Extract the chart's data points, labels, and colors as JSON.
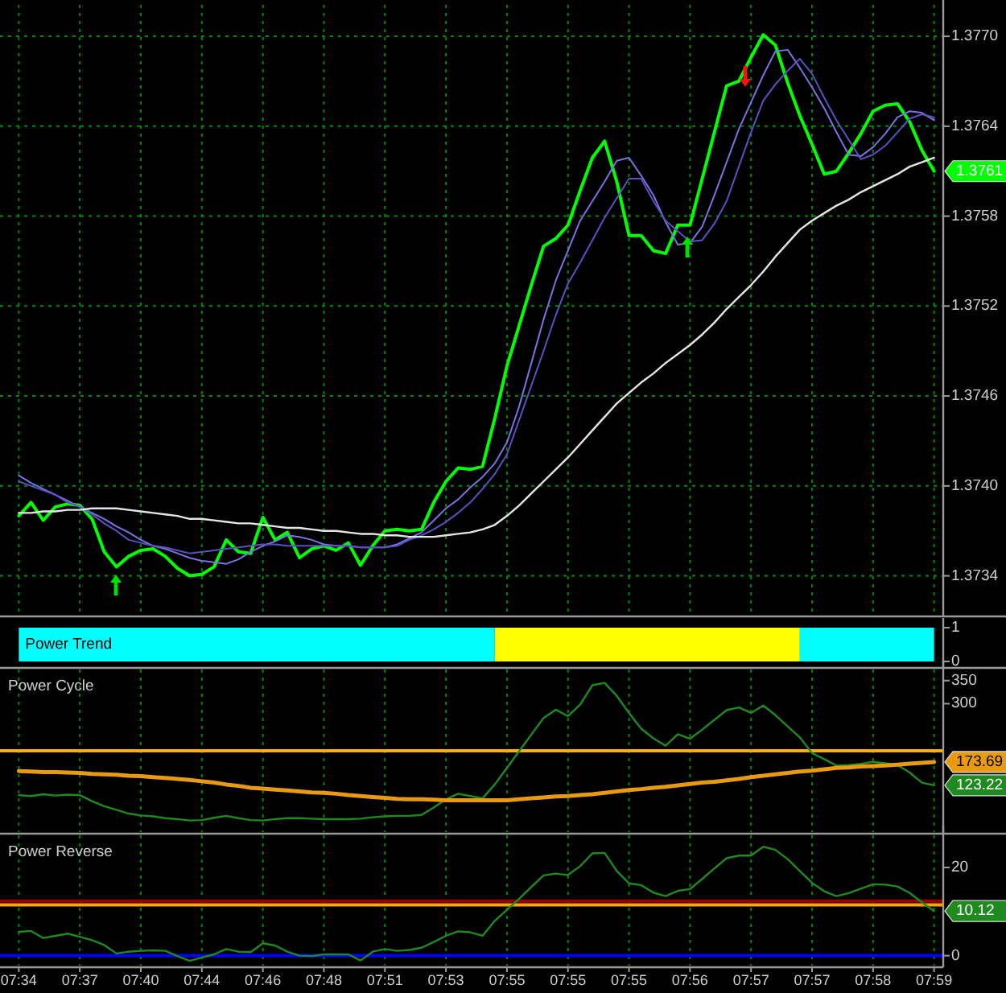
{
  "chart_data": [
    {
      "type": "line",
      "categories": [
        null,
        null,
        null,
        null,
        null,
        null,
        null,
        null,
        null,
        null,
        null,
        null,
        null,
        null,
        null,
        null,
        null,
        null,
        null,
        null,
        null,
        null,
        null,
        null,
        null,
        null,
        null,
        null,
        null,
        null,
        null,
        null,
        null,
        null,
        null,
        null,
        null,
        null,
        null,
        null,
        null,
        null,
        null,
        null,
        null,
        null,
        null,
        null,
        null,
        null,
        null,
        null,
        null,
        null,
        null,
        null,
        null,
        null,
        null,
        null,
        null,
        null,
        null,
        null,
        null,
        null,
        null,
        null,
        null,
        null,
        null,
        null,
        null,
        null,
        null,
        null
      ],
      "ylim": [
        1.37314,
        1.37721
      ],
      "yticks": [
        1.3734,
        {
          "value": 1.374,
          "label": "1.3740"
        },
        1.3746,
        1.3752,
        1.3758,
        1.3764,
        {
          "value": 1.377,
          "label": "1.3770"
        }
      ],
      "grid": true,
      "tick_labels": "y",
      "series": [
        {
          "color": "#00ff00",
          "values": [
            1.3738,
            1.37389,
            1.37377,
            1.37386,
            1.37388,
            1.37387,
            1.37378,
            1.37356,
            1.37346,
            1.37353,
            1.37357,
            1.37358,
            1.37353,
            1.37345,
            1.3734,
            1.37341,
            1.37346,
            1.37364,
            1.37356,
            1.37355,
            1.37379,
            1.37364,
            1.37369,
            1.37352,
            1.37358,
            1.3736,
            1.37357,
            1.37362,
            1.37347,
            1.3736,
            1.3737,
            1.37371,
            1.3737,
            1.37371,
            1.37389,
            1.37403,
            1.37412,
            1.37411,
            1.37413,
            1.37445,
            1.3748,
            1.37507,
            1.37534,
            1.3756,
            1.37565,
            1.37574,
            1.37597,
            1.37619,
            1.3763,
            1.37603,
            1.37567,
            1.37567,
            1.37557,
            1.37555,
            1.37574,
            1.37574,
            1.37605,
            1.37636,
            1.37667,
            1.3767,
            1.37686,
            1.37701,
            1.37694,
            1.37669,
            1.37647,
            1.37628,
            1.37608,
            1.3761,
            1.37622,
            1.37635,
            1.3765,
            1.37654,
            1.37655,
            1.37643,
            1.37624,
            1.3761
          ],
          "value_labels": [
            null,
            null,
            null,
            null,
            null,
            null,
            null,
            null,
            null,
            null,
            null,
            null,
            null,
            null,
            null,
            null,
            null,
            null,
            null,
            null,
            null,
            null,
            null,
            null,
            null,
            null,
            null,
            null,
            null,
            null,
            null,
            null,
            null,
            null,
            null,
            null,
            null,
            null,
            null,
            null,
            null,
            null,
            null,
            null,
            null,
            null,
            null,
            null,
            null,
            null,
            null,
            null,
            null,
            null,
            null,
            null,
            null,
            null,
            null,
            null,
            null,
            null,
            null,
            null,
            null,
            null,
            null,
            null,
            null,
            null,
            null,
            null,
            null,
            null,
            null,
            "1.3761"
          ]
        },
        {
          "color": "#7b72e0",
          "values": [
            1.37407,
            1.37402,
            1.37398,
            1.37394,
            1.3739,
            1.37386,
            1.37382,
            1.37378,
            1.37373,
            1.37369,
            1.37364,
            1.3736,
            1.37358,
            1.37355,
            1.37352,
            1.3735,
            1.37349,
            1.37348,
            1.37351,
            1.37356,
            1.3736,
            1.37363,
            1.37367,
            1.37366,
            1.37364,
            1.37361,
            1.3736,
            1.3736,
            1.37359,
            1.37359,
            1.37359,
            1.37361,
            1.37365,
            1.37369,
            1.37377,
            1.37385,
            1.37391,
            1.37399,
            1.37406,
            1.37415,
            1.37429,
            1.37453,
            1.37482,
            1.37511,
            1.37537,
            1.37557,
            1.37577,
            1.3759,
            1.37603,
            1.37617,
            1.37619,
            1.37607,
            1.37594,
            1.37576,
            1.37561,
            1.37562,
            1.37573,
            1.37594,
            1.37616,
            1.37638,
            1.37656,
            1.37674,
            1.3769,
            1.37691,
            1.37679,
            1.37666,
            1.37652,
            1.37636,
            1.37621,
            1.3762,
            1.37626,
            1.37635,
            1.37646,
            1.3765,
            1.37649,
            1.37644
          ]
        },
        {
          "color": "#5a52c0",
          "values": [
            1.37403,
            1.374,
            1.37397,
            1.37394,
            1.37389,
            1.37386,
            1.37381,
            1.37375,
            1.3737,
            1.37364,
            1.37362,
            1.3736,
            1.37359,
            1.37357,
            1.37355,
            1.37356,
            1.37357,
            1.37358,
            1.37359,
            1.3736,
            1.37361,
            1.37361,
            1.3736,
            1.3736,
            1.3736,
            1.3736,
            1.3736,
            1.3736,
            1.37359,
            1.37359,
            1.37359,
            1.3736,
            1.37364,
            1.37367,
            1.37371,
            1.37376,
            1.37382,
            1.37389,
            1.37398,
            1.37408,
            1.37421,
            1.37444,
            1.37467,
            1.3749,
            1.37514,
            1.37535,
            1.37549,
            1.37564,
            1.37579,
            1.37592,
            1.37605,
            1.37605,
            1.3759,
            1.37577,
            1.3757,
            1.37563,
            1.37564,
            1.37575,
            1.3759,
            1.37613,
            1.37636,
            1.37657,
            1.37668,
            1.37677,
            1.37685,
            1.37675,
            1.37659,
            1.37644,
            1.37631,
            1.37618,
            1.37621,
            1.37627,
            1.37636,
            1.37645,
            1.37648,
            1.37646
          ]
        },
        {
          "color": "#e6e6e6",
          "values": [
            1.37382,
            1.37382,
            1.37383,
            1.37383,
            1.37384,
            1.37384,
            1.37385,
            1.37385,
            1.37385,
            1.37384,
            1.37383,
            1.37382,
            1.37381,
            1.3738,
            1.37378,
            1.37378,
            1.37377,
            1.37376,
            1.37375,
            1.37375,
            1.37374,
            1.37373,
            1.37372,
            1.37372,
            1.37371,
            1.3737,
            1.3737,
            1.37369,
            1.37368,
            1.37368,
            1.37367,
            1.37367,
            1.37366,
            1.37366,
            1.37366,
            1.37367,
            1.37368,
            1.37369,
            1.37371,
            1.37374,
            1.3738,
            1.37387,
            1.37395,
            1.37403,
            1.37411,
            1.37419,
            1.37428,
            1.37437,
            1.37446,
            1.37455,
            1.37462,
            1.37469,
            1.37475,
            1.37482,
            1.37488,
            1.37494,
            1.37501,
            1.37509,
            1.37518,
            1.37526,
            1.37534,
            1.37543,
            1.37553,
            1.37562,
            1.37571,
            1.37577,
            1.37582,
            1.37587,
            1.37591,
            1.37596,
            1.376,
            1.37604,
            1.37608,
            1.37613,
            1.37616,
            1.37619
          ]
        }
      ]
    },
    {
      "type": "area",
      "title": "Power Trend",
      "categories": [
        null,
        null,
        null,
        null,
        null,
        null,
        null,
        null,
        null,
        null,
        null,
        null,
        null,
        null,
        null,
        null,
        null,
        null,
        null,
        null,
        null,
        null,
        null,
        null,
        null,
        null,
        null,
        null,
        null,
        null,
        null,
        null,
        null,
        null,
        null,
        null,
        null,
        null,
        null,
        null,
        null,
        null,
        null,
        null,
        null,
        null,
        null,
        null,
        null,
        null,
        null,
        null,
        null,
        null,
        null,
        null,
        null,
        null,
        null,
        null,
        null,
        null,
        null,
        null,
        null,
        null,
        null,
        null,
        null,
        null,
        null,
        null,
        null,
        null,
        null,
        null
      ],
      "ylim": [
        0,
        1
      ],
      "yticks": [
        0,
        1
      ],
      "tick_labels": "y",
      "series": [
        {
          "color": "#00ffff",
          "values": [
            1,
            1,
            1,
            1,
            1,
            1,
            1,
            1,
            1,
            1,
            1,
            1,
            1,
            1,
            1,
            1,
            1,
            1,
            1,
            1,
            1,
            1,
            1,
            1,
            1,
            1,
            1,
            1,
            1,
            1,
            1,
            1,
            1,
            1,
            1,
            1,
            1,
            1,
            1,
            1,
            null,
            null,
            null,
            null,
            null,
            null,
            null,
            null,
            null,
            null,
            null,
            null,
            null,
            null,
            null,
            null,
            null,
            null,
            null,
            null,
            null,
            null,
            null,
            null,
            1,
            1,
            1,
            1,
            1,
            1,
            1,
            1,
            1,
            1,
            1,
            1
          ]
        },
        {
          "color": "#ffff00",
          "values": [
            null,
            null,
            null,
            null,
            null,
            null,
            null,
            null,
            null,
            null,
            null,
            null,
            null,
            null,
            null,
            null,
            null,
            null,
            null,
            null,
            null,
            null,
            null,
            null,
            null,
            null,
            null,
            null,
            null,
            null,
            null,
            null,
            null,
            null,
            null,
            null,
            null,
            null,
            null,
            1,
            1,
            1,
            1,
            1,
            1,
            1,
            1,
            1,
            1,
            1,
            1,
            1,
            1,
            1,
            1,
            1,
            1,
            1,
            1,
            1,
            1,
            1,
            1,
            1,
            1,
            null,
            null,
            null,
            null,
            null,
            null,
            null,
            null,
            null,
            null,
            null
          ]
        }
      ]
    },
    {
      "type": "line",
      "title": "Power Cycle",
      "categories": [
        null,
        null,
        null,
        null,
        null,
        null,
        null,
        null,
        null,
        null,
        null,
        null,
        null,
        null,
        null,
        null,
        null,
        null,
        null,
        null,
        null,
        null,
        null,
        null,
        null,
        null,
        null,
        null,
        null,
        null,
        null,
        null,
        null,
        null,
        null,
        null,
        null,
        null,
        null,
        null,
        null,
        null,
        null,
        null,
        null,
        null,
        null,
        null,
        null,
        null,
        null,
        null,
        null,
        null,
        null,
        null,
        null,
        null,
        null,
        null,
        null,
        null,
        null,
        null,
        null,
        null,
        null,
        null,
        null,
        null,
        null,
        null,
        null,
        null,
        null,
        null
      ],
      "ylim": [
        22,
        374
      ],
      "yticks": [
        300,
        350
      ],
      "grid": "x",
      "tick_labels": "y",
      "ref_lines": [
        {
          "axis": "y",
          "value": 198,
          "color": "#ffb000"
        }
      ],
      "series": [
        {
          "color": "#1f8a1f",
          "values": [
            102,
            100,
            104,
            101,
            103,
            102,
            89,
            78,
            70,
            62,
            58,
            56,
            52,
            50,
            47,
            48,
            53,
            57,
            52,
            48,
            47,
            50,
            52,
            52,
            51,
            50,
            50,
            50,
            51,
            54,
            56,
            57,
            57,
            59,
            75,
            93,
            105,
            100,
            95,
            125,
            161,
            197,
            233,
            269,
            287,
            273,
            298,
            340,
            345,
            317,
            280,
            246,
            225,
            209,
            234,
            224,
            244,
            265,
            286,
            292,
            280,
            296,
            275,
            251,
            227,
            193,
            180,
            166,
            167,
            170,
            174,
            171,
            167,
            151,
            129,
            123.22
          ],
          "value_labels": [
            null,
            null,
            null,
            null,
            null,
            null,
            null,
            null,
            null,
            null,
            null,
            null,
            null,
            null,
            null,
            null,
            null,
            null,
            null,
            null,
            null,
            null,
            null,
            null,
            null,
            null,
            null,
            null,
            null,
            null,
            null,
            null,
            null,
            null,
            null,
            null,
            null,
            null,
            null,
            null,
            null,
            null,
            null,
            null,
            null,
            null,
            null,
            null,
            null,
            null,
            null,
            null,
            null,
            null,
            null,
            null,
            null,
            null,
            null,
            null,
            null,
            null,
            null,
            null,
            null,
            null,
            null,
            null,
            null,
            null,
            null,
            null,
            null,
            null,
            null,
            "123.22"
          ]
        },
        {
          "color": "#e89a10",
          "values": [
            154,
            153,
            152,
            152,
            151,
            150,
            148,
            147,
            146,
            144,
            143,
            141,
            139,
            137,
            135,
            132,
            129,
            125,
            122,
            118,
            116,
            114,
            112,
            110,
            108,
            107,
            105,
            102,
            100,
            98,
            96,
            94,
            93,
            93,
            92,
            91,
            91,
            91,
            91,
            91,
            91,
            93,
            95,
            97,
            99,
            100,
            102,
            104,
            107,
            110,
            113,
            115,
            118,
            120,
            123,
            126,
            129,
            131,
            134,
            137,
            141,
            144,
            147,
            150,
            153,
            155,
            158,
            161,
            162,
            164,
            165,
            166,
            168,
            170,
            172,
            173.69
          ],
          "value_labels": [
            null,
            null,
            null,
            null,
            null,
            null,
            null,
            null,
            null,
            null,
            null,
            null,
            null,
            null,
            null,
            null,
            null,
            null,
            null,
            null,
            null,
            null,
            null,
            null,
            null,
            null,
            null,
            null,
            null,
            null,
            null,
            null,
            null,
            null,
            null,
            null,
            null,
            null,
            null,
            null,
            null,
            null,
            null,
            null,
            null,
            null,
            null,
            null,
            null,
            null,
            null,
            null,
            null,
            null,
            null,
            null,
            null,
            null,
            null,
            null,
            null,
            null,
            null,
            null,
            null,
            null,
            null,
            null,
            null,
            null,
            null,
            null,
            null,
            null,
            null,
            "173.69"
          ]
        }
      ]
    },
    {
      "type": "line",
      "title": "Power Reverse",
      "categories": [
        "07:34",
        null,
        null,
        null,
        null,
        "07:37",
        null,
        null,
        null,
        null,
        "07:40",
        null,
        null,
        null,
        null,
        "07:44",
        null,
        null,
        null,
        null,
        "07:46",
        null,
        null,
        null,
        null,
        "07:48",
        null,
        null,
        null,
        null,
        "07:51",
        null,
        null,
        null,
        null,
        "07:53",
        null,
        null,
        null,
        null,
        "07:55",
        null,
        null,
        null,
        null,
        "07:55",
        null,
        null,
        null,
        null,
        "07:55",
        null,
        null,
        null,
        null,
        "07:56",
        null,
        null,
        null,
        null,
        "07:57",
        null,
        null,
        null,
        null,
        "07:57",
        null,
        null,
        null,
        null,
        "07:58",
        null,
        null,
        null,
        null,
        "07:59"
      ],
      "ylim": [
        -2.26,
        27.3
      ],
      "yticks": [
        0,
        20
      ],
      "grid": "x",
      "ref_lines": [
        {
          "axis": "y",
          "value": 12.4,
          "color": "#9a0000"
        },
        {
          "axis": "y",
          "value": 11.5,
          "color": "#ffa500"
        },
        {
          "axis": "y",
          "value": 0,
          "color": "#0000ff"
        }
      ],
      "series": [
        {
          "color": "#1f8a1f",
          "values": [
            5.4,
            5.6,
            4,
            4.5,
            5,
            4.3,
            3.5,
            2.4,
            0.5,
            0.9,
            1.1,
            1.2,
            1.1,
            -0.1,
            -1.2,
            -0.4,
            0.3,
            1.5,
            0.9,
            0.8,
            2.8,
            2.3,
            0.9,
            0,
            -0.1,
            0.3,
            0.3,
            0.3,
            -1.1,
            0.9,
            1.5,
            1.1,
            1.3,
            1.8,
            3.1,
            4.5,
            5.5,
            5.3,
            4.5,
            7.9,
            10.4,
            12.9,
            15.6,
            18.2,
            18.6,
            18.3,
            20.3,
            23.2,
            23.3,
            19.2,
            16.4,
            16,
            14.3,
            13.5,
            14.7,
            15.1,
            17.4,
            19.8,
            22.1,
            22.7,
            22.7,
            24.7,
            24,
            21.9,
            19.2,
            16.5,
            14.6,
            13.5,
            14.2,
            15.2,
            16.2,
            16.1,
            15.7,
            14.2,
            12.1,
            10.12
          ],
          "value_labels": [
            null,
            null,
            null,
            null,
            null,
            null,
            null,
            null,
            null,
            null,
            null,
            null,
            null,
            null,
            null,
            null,
            null,
            null,
            null,
            null,
            null,
            null,
            null,
            null,
            null,
            null,
            null,
            null,
            null,
            null,
            null,
            null,
            null,
            null,
            null,
            null,
            null,
            null,
            null,
            null,
            null,
            null,
            null,
            null,
            null,
            null,
            null,
            null,
            null,
            null,
            null,
            null,
            null,
            null,
            null,
            null,
            null,
            null,
            null,
            null,
            null,
            null,
            null,
            null,
            null,
            null,
            null,
            null,
            null,
            null,
            null,
            null,
            null,
            null,
            null,
            "10.12"
          ]
        }
      ]
    }
  ]
}
